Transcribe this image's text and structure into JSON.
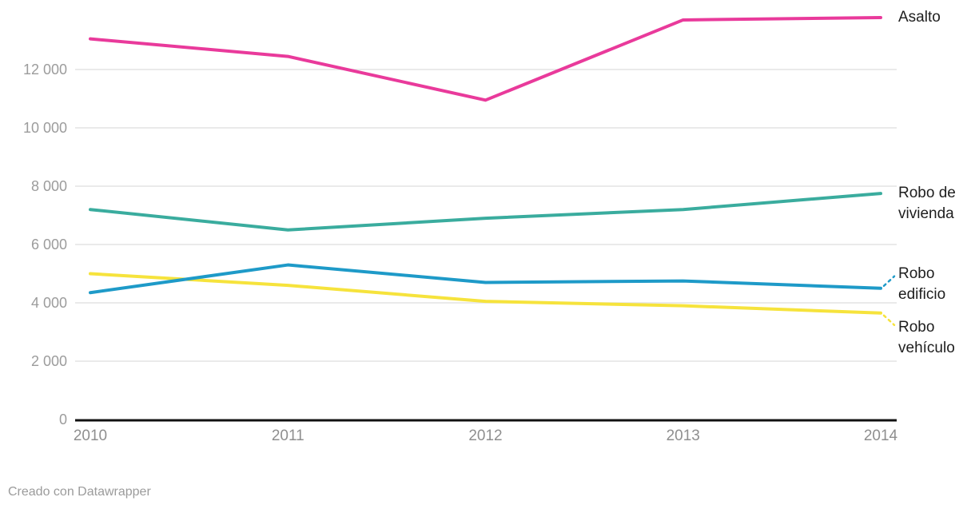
{
  "chart_data": {
    "type": "line",
    "x": [
      "2010",
      "2011",
      "2012",
      "2013",
      "2014"
    ],
    "series": [
      {
        "name": "Asalto",
        "label_lines": [
          "Asalto"
        ],
        "color": "#E93A9B",
        "values": [
          13050,
          12450,
          10950,
          13700,
          13780
        ]
      },
      {
        "name": "Robo de vivienda",
        "label_lines": [
          "Robo de",
          "vivienda"
        ],
        "color": "#3AAC9E",
        "values": [
          7200,
          6500,
          6900,
          7200,
          7750
        ]
      },
      {
        "name": "Robo edificio",
        "label_lines": [
          "Robo",
          "edificio"
        ],
        "color": "#1E9AC8",
        "values": [
          4350,
          5300,
          4700,
          4750,
          4500
        ]
      },
      {
        "name": "Robo vehículo",
        "label_lines": [
          "Robo",
          "vehículo"
        ],
        "color": "#F6E33C",
        "values": [
          5000,
          4600,
          4050,
          3900,
          3650
        ]
      }
    ],
    "ytick_values": [
      0,
      2000,
      4000,
      6000,
      8000,
      10000,
      12000
    ],
    "ytick_labels": [
      "0",
      "2 000",
      "4 000",
      "6 000",
      "8 000",
      "10 000",
      "12 000"
    ],
    "ylim": [
      0,
      14400
    ],
    "grid": true,
    "legend_position": "right-direct-labels",
    "title": "",
    "xlabel": "",
    "ylabel": ""
  },
  "footer": {
    "credit": "Creado con Datawrapper"
  }
}
